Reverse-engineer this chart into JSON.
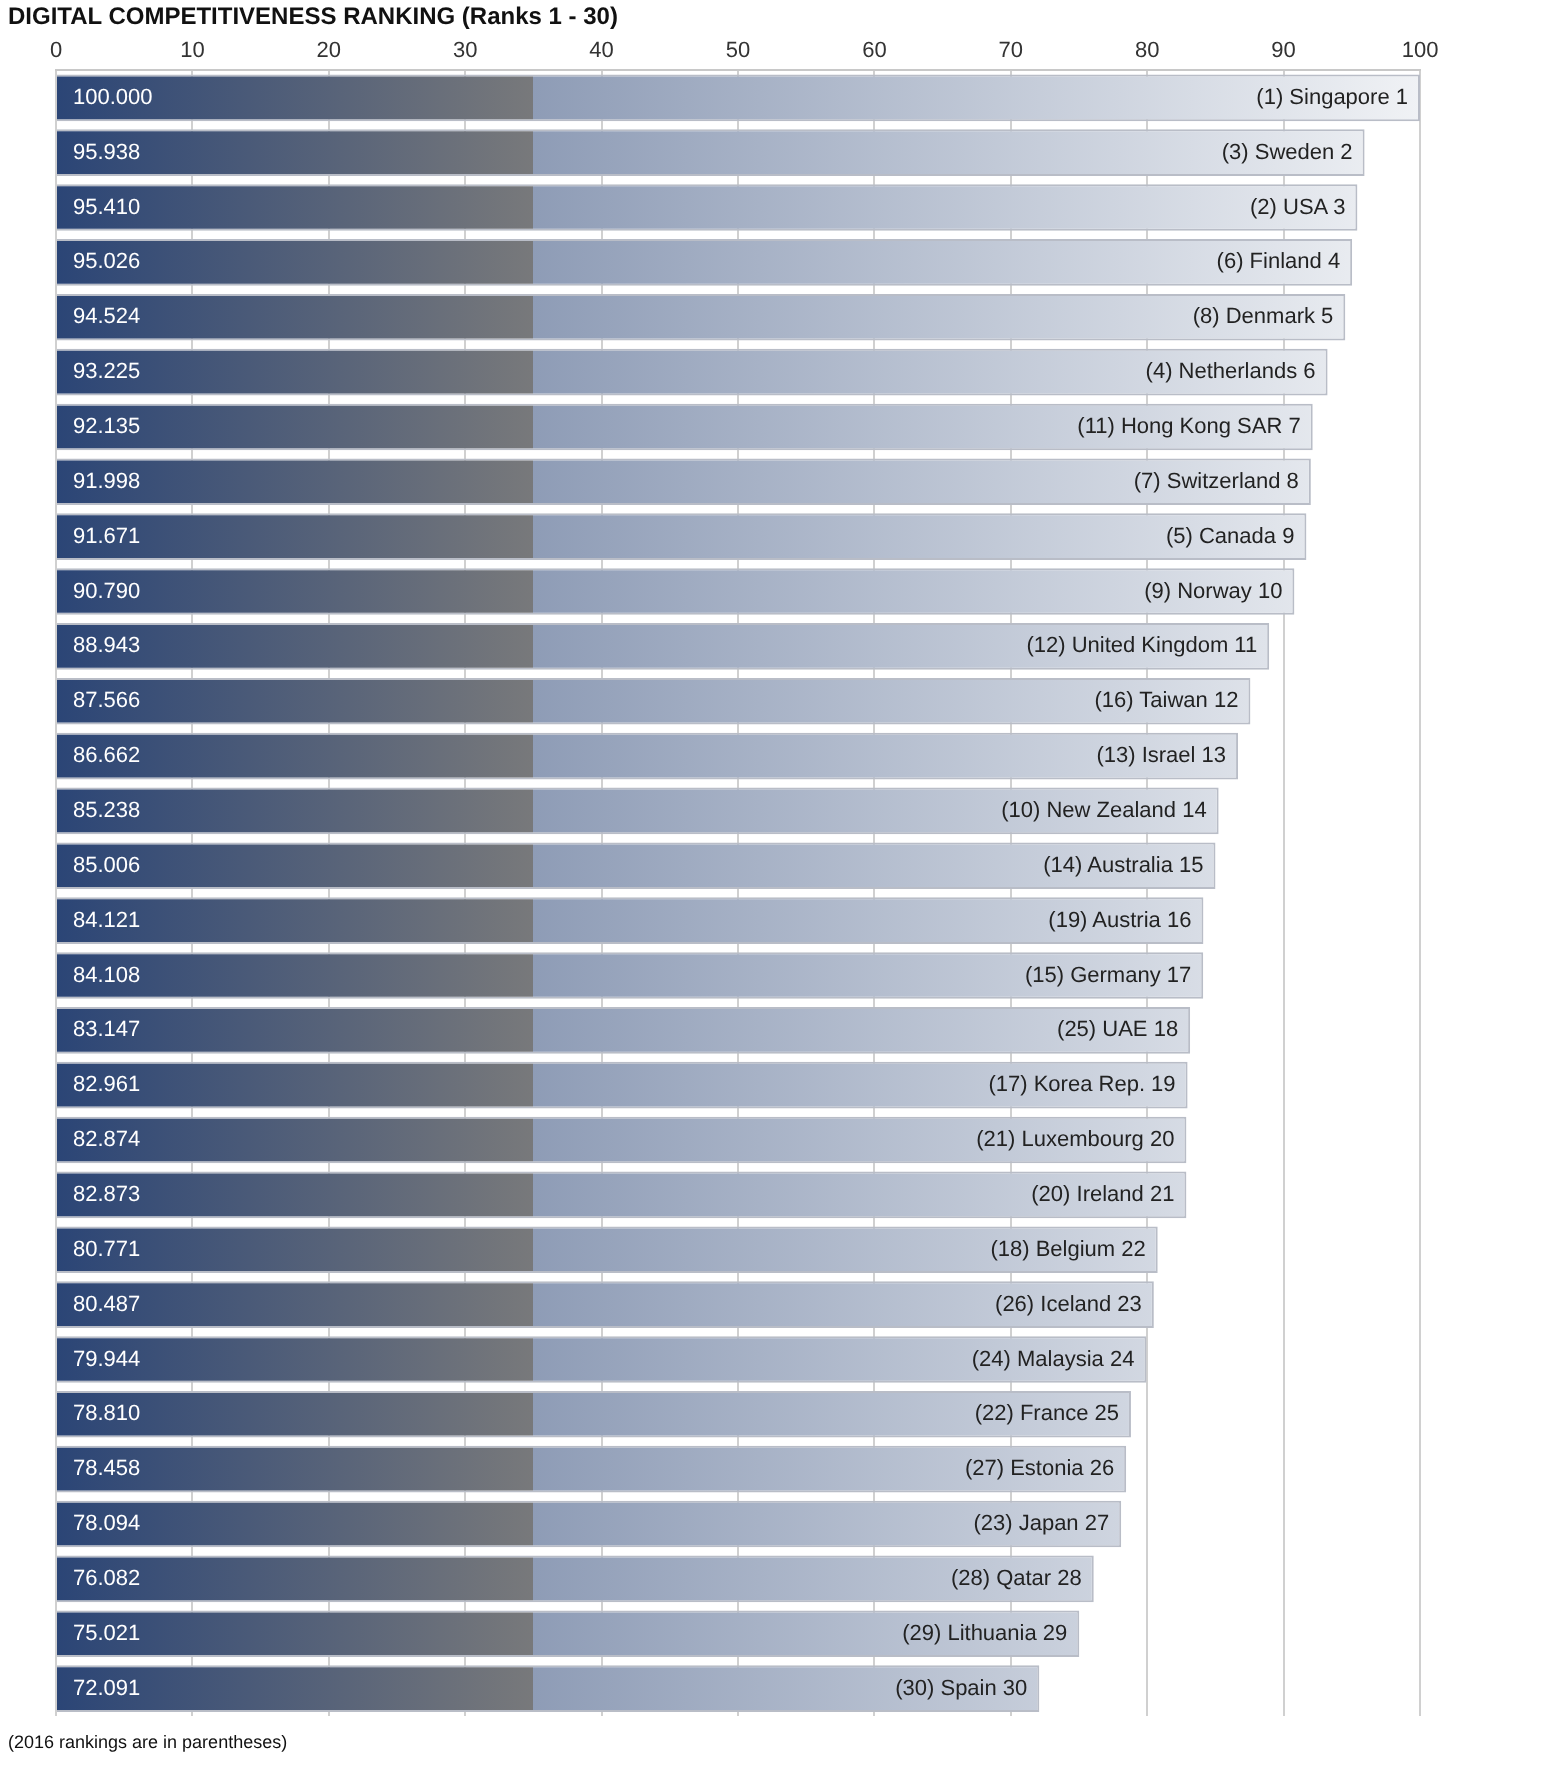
{
  "chart_data": {
    "type": "bar",
    "orientation": "horizontal",
    "title": "DIGITAL COMPETITIVENESS RANKING (Ranks 1 - 30)",
    "categories": [
      "(1) Singapore 1",
      "(3) Sweden 2",
      "(2) USA 3",
      "(6) Finland 4",
      "(8) Denmark 5",
      "(4) Netherlands 6",
      "(11) Hong Kong SAR 7",
      "(7) Switzerland 8",
      "(5) Canada 9",
      "(9) Norway 10",
      "(12) United Kingdom 11",
      "(16) Taiwan 12",
      "(13) Israel 13",
      "(10) New Zealand 14",
      "(14) Australia 15",
      "(19) Austria 16",
      "(15) Germany 17",
      "(25) UAE 18",
      "(17) Korea Rep. 19",
      "(21) Luxembourg 20",
      "(20) Ireland 21",
      "(18) Belgium 22",
      "(26) Iceland 23",
      "(24) Malaysia 24",
      "(22) France 25",
      "(27) Estonia 26",
      "(23) Japan 27",
      "(28) Qatar 28",
      "(29) Lithuania 29",
      "(30) Spain 30"
    ],
    "values": [
      100.0,
      95.938,
      95.41,
      95.026,
      94.524,
      93.225,
      92.135,
      91.998,
      91.671,
      90.79,
      88.943,
      87.566,
      86.662,
      85.238,
      85.006,
      84.121,
      84.108,
      83.147,
      82.961,
      82.874,
      82.873,
      80.771,
      80.487,
      79.944,
      78.81,
      78.458,
      78.094,
      76.082,
      75.021,
      72.091
    ],
    "value_labels": [
      "100.000",
      "95.938",
      "95.410",
      "95.026",
      "94.524",
      "93.225",
      "92.135",
      "91.998",
      "91.671",
      "90.790",
      "88.943",
      "87.566",
      "86.662",
      "85.238",
      "85.006",
      "84.121",
      "84.108",
      "83.147",
      "82.961",
      "82.874",
      "82.873",
      "80.771",
      "80.487",
      "79.944",
      "78.810",
      "78.458",
      "78.094",
      "76.082",
      "75.021",
      "72.091"
    ],
    "color": "#2b4576",
    "xlim": [
      0,
      100
    ],
    "xticks": [
      0,
      10,
      20,
      30,
      40,
      50,
      60,
      70,
      80,
      90,
      100
    ],
    "grid": "x",
    "tick_labels": "x",
    "legend": false,
    "annotations": [
      "(2016 rankings are in parentheses)"
    ]
  }
}
